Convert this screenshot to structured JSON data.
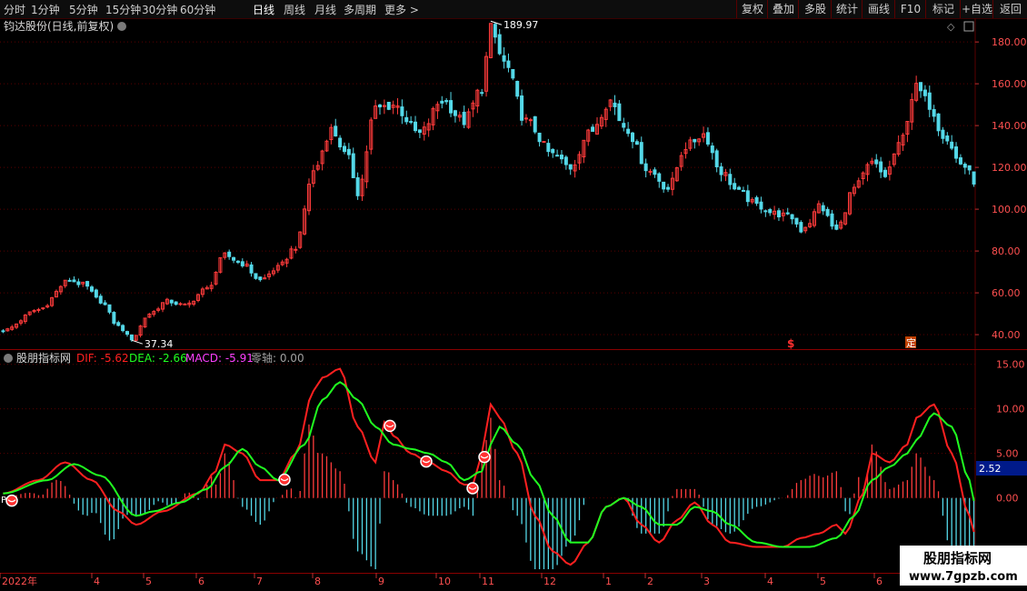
{
  "toolbar": {
    "timeframes": [
      "分时",
      "1分钟",
      "5分钟",
      "15分钟",
      "30分钟",
      "60分钟",
      "日线",
      "周线",
      "月线",
      "多周期",
      "更多 >"
    ],
    "active": "日线",
    "right_buttons": [
      "复权",
      "叠加",
      "多股",
      "统计",
      "画线",
      "F10",
      "标记",
      "+自选",
      "返回"
    ]
  },
  "main_panel": {
    "title": "钧达股份(日线,前复权)",
    "y_ticks": [
      "180.00",
      "160.00",
      "140.00",
      "120.00",
      "100.00",
      "80.00",
      "60.00",
      "40.00"
    ],
    "high_label": "189.97",
    "low_label": "37.34",
    "marker_s": "$",
    "marker_ding": "定"
  },
  "indicator_panel": {
    "name": "股朋指标网",
    "dif_label": "DIF: -5.62",
    "dea_label": "DEA: -2.66",
    "macd_label": "MACD: -5.91",
    "zero_label": "零轴: 0.00",
    "y_ticks": [
      "15.00",
      "10.00",
      "5.00",
      "0.00"
    ],
    "current_value": "2.52",
    "p_marker": "P"
  },
  "x_axis": {
    "labels": [
      "2022年",
      "4",
      "5",
      "6",
      "7",
      "8",
      "9",
      "10",
      "11",
      "12",
      "1",
      "2",
      "3",
      "4",
      "5",
      "6"
    ]
  },
  "watermark": {
    "title": "股朋指标网",
    "url": "www.7gpzb.com"
  },
  "colors": {
    "up": "#ff3b3b",
    "down": "#54d8e8",
    "dif": "#ff2020",
    "dea": "#20ff20",
    "macd": "#ff40ff",
    "grid": "#5a0000"
  },
  "chart_data": {
    "type": "candlestick",
    "y_range": [
      35,
      192
    ],
    "price_waypoints": [
      [
        0,
        42
      ],
      [
        8,
        52
      ],
      [
        15,
        66
      ],
      [
        18,
        64
      ],
      [
        22,
        56
      ],
      [
        26,
        44
      ],
      [
        29,
        38
      ],
      [
        33,
        50
      ],
      [
        37,
        56
      ],
      [
        41,
        54
      ],
      [
        46,
        62
      ],
      [
        50,
        78
      ],
      [
        54,
        74
      ],
      [
        58,
        66
      ],
      [
        62,
        72
      ],
      [
        66,
        82
      ],
      [
        70,
        118
      ],
      [
        74,
        138
      ],
      [
        78,
        124
      ],
      [
        80,
        108
      ],
      [
        84,
        148
      ],
      [
        88,
        150
      ],
      [
        94,
        136
      ],
      [
        99,
        152
      ],
      [
        104,
        142
      ],
      [
        108,
        158
      ],
      [
        110,
        186
      ],
      [
        113,
        170
      ],
      [
        118,
        142
      ],
      [
        124,
        126
      ],
      [
        128,
        120
      ],
      [
        132,
        136
      ],
      [
        137,
        152
      ],
      [
        140,
        140
      ],
      [
        146,
        118
      ],
      [
        150,
        110
      ],
      [
        154,
        130
      ],
      [
        158,
        136
      ],
      [
        162,
        118
      ],
      [
        166,
        108
      ],
      [
        170,
        102
      ],
      [
        174,
        98
      ],
      [
        178,
        96
      ],
      [
        180,
        90
      ],
      [
        182,
        94
      ],
      [
        184,
        102
      ],
      [
        188,
        90
      ],
      [
        192,
        110
      ],
      [
        196,
        122
      ],
      [
        199,
        116
      ],
      [
        202,
        130
      ],
      [
        206,
        158
      ],
      [
        209,
        150
      ],
      [
        212,
        136
      ],
      [
        216,
        122
      ],
      [
        220,
        112
      ]
    ],
    "macd_dif_waypoints": [
      [
        0,
        0.5
      ],
      [
        8,
        2
      ],
      [
        14,
        4
      ],
      [
        20,
        2
      ],
      [
        26,
        -1.5
      ],
      [
        30,
        -3
      ],
      [
        36,
        -1.5
      ],
      [
        44,
        0.5
      ],
      [
        48,
        3
      ],
      [
        50,
        6
      ],
      [
        54,
        5
      ],
      [
        58,
        2
      ],
      [
        62,
        2
      ],
      [
        66,
        5
      ],
      [
        70,
        12
      ],
      [
        72,
        13.5
      ],
      [
        76,
        14.5
      ],
      [
        80,
        8
      ],
      [
        84,
        4
      ],
      [
        86,
        8.5
      ],
      [
        88,
        7
      ],
      [
        92,
        5
      ],
      [
        96,
        4
      ],
      [
        100,
        3
      ],
      [
        104,
        1.5
      ],
      [
        106,
        1.5
      ],
      [
        108,
        5
      ],
      [
        110,
        10.5
      ],
      [
        112,
        9
      ],
      [
        116,
        5
      ],
      [
        120,
        -2
      ],
      [
        124,
        -6
      ],
      [
        128,
        -7.5
      ],
      [
        132,
        -5
      ],
      [
        136,
        -1
      ],
      [
        140,
        0
      ],
      [
        144,
        -3
      ],
      [
        148,
        -5
      ],
      [
        152,
        -2.5
      ],
      [
        156,
        -0.5
      ],
      [
        160,
        -3
      ],
      [
        164,
        -5
      ],
      [
        170,
        -5.5
      ],
      [
        176,
        -5.5
      ],
      [
        180,
        -4.5
      ],
      [
        184,
        -4
      ],
      [
        188,
        -3
      ],
      [
        190,
        -4
      ],
      [
        194,
        0.5
      ],
      [
        196,
        5
      ],
      [
        200,
        4
      ],
      [
        204,
        6
      ],
      [
        206,
        9
      ],
      [
        210,
        10.5
      ],
      [
        214,
        5
      ],
      [
        218,
        -2
      ],
      [
        220,
        -5.62
      ]
    ],
    "macd_dea_waypoints": [
      [
        0,
        0.5
      ],
      [
        10,
        2
      ],
      [
        16,
        3.8
      ],
      [
        22,
        2.5
      ],
      [
        30,
        -2
      ],
      [
        34,
        -1.5
      ],
      [
        40,
        -0.5
      ],
      [
        46,
        1
      ],
      [
        50,
        3.5
      ],
      [
        54,
        5.5
      ],
      [
        58,
        3.5
      ],
      [
        62,
        2
      ],
      [
        68,
        6
      ],
      [
        72,
        11
      ],
      [
        76,
        13
      ],
      [
        80,
        11
      ],
      [
        84,
        8
      ],
      [
        88,
        6
      ],
      [
        92,
        5.5
      ],
      [
        96,
        5
      ],
      [
        100,
        4
      ],
      [
        104,
        2
      ],
      [
        108,
        3
      ],
      [
        110,
        6
      ],
      [
        112,
        8
      ],
      [
        116,
        6
      ],
      [
        120,
        2
      ],
      [
        124,
        -2
      ],
      [
        128,
        -5
      ],
      [
        132,
        -5
      ],
      [
        136,
        -1
      ],
      [
        140,
        0
      ],
      [
        144,
        -1
      ],
      [
        148,
        -3
      ],
      [
        152,
        -3
      ],
      [
        156,
        -1
      ],
      [
        160,
        -1.5
      ],
      [
        164,
        -3
      ],
      [
        170,
        -5
      ],
      [
        176,
        -5.5
      ],
      [
        182,
        -5.5
      ],
      [
        188,
        -4.5
      ],
      [
        192,
        -2
      ],
      [
        196,
        2
      ],
      [
        200,
        3.5
      ],
      [
        204,
        5
      ],
      [
        206,
        6.5
      ],
      [
        210,
        9.5
      ],
      [
        214,
        8
      ],
      [
        218,
        2
      ],
      [
        220,
        -2.66
      ]
    ],
    "macd_y_range": [
      -8,
      16
    ],
    "sticks": 220
  }
}
